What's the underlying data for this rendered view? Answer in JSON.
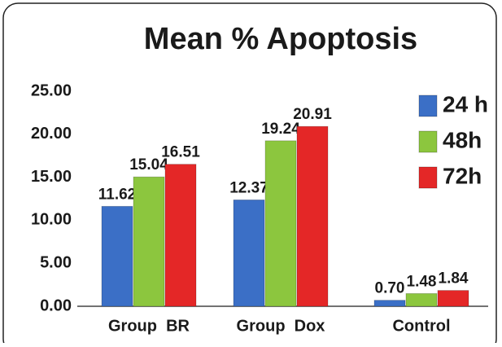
{
  "chart_data": {
    "type": "bar",
    "title": "Mean % Apoptosis",
    "categories": [
      "Group  BR",
      "Group  Dox",
      "Control"
    ],
    "series": [
      {
        "name": "24 h",
        "color": "#3b6fc6",
        "values": [
          11.62,
          12.37,
          0.7
        ],
        "value_labels": [
          "11.62",
          "12.37",
          "0.70"
        ]
      },
      {
        "name": "48h",
        "color": "#8cc63e",
        "values": [
          15.04,
          19.24,
          1.48
        ],
        "value_labels": [
          "15.04",
          "19.24",
          "1.48"
        ]
      },
      {
        "name": "72h",
        "color": "#e42727",
        "values": [
          16.51,
          20.91,
          1.84
        ],
        "value_labels": [
          "16.51",
          "20.91",
          "1.84"
        ]
      }
    ],
    "ylim": [
      0,
      25
    ],
    "yticks": [
      {
        "value": 0,
        "label": "0.00"
      },
      {
        "value": 5,
        "label": "5.00"
      },
      {
        "value": 10,
        "label": "10.00"
      },
      {
        "value": 15,
        "label": "15.00"
      },
      {
        "value": 20,
        "label": "20.00"
      },
      {
        "value": 25,
        "label": "25.00"
      }
    ],
    "grid": false,
    "legend": "right"
  }
}
